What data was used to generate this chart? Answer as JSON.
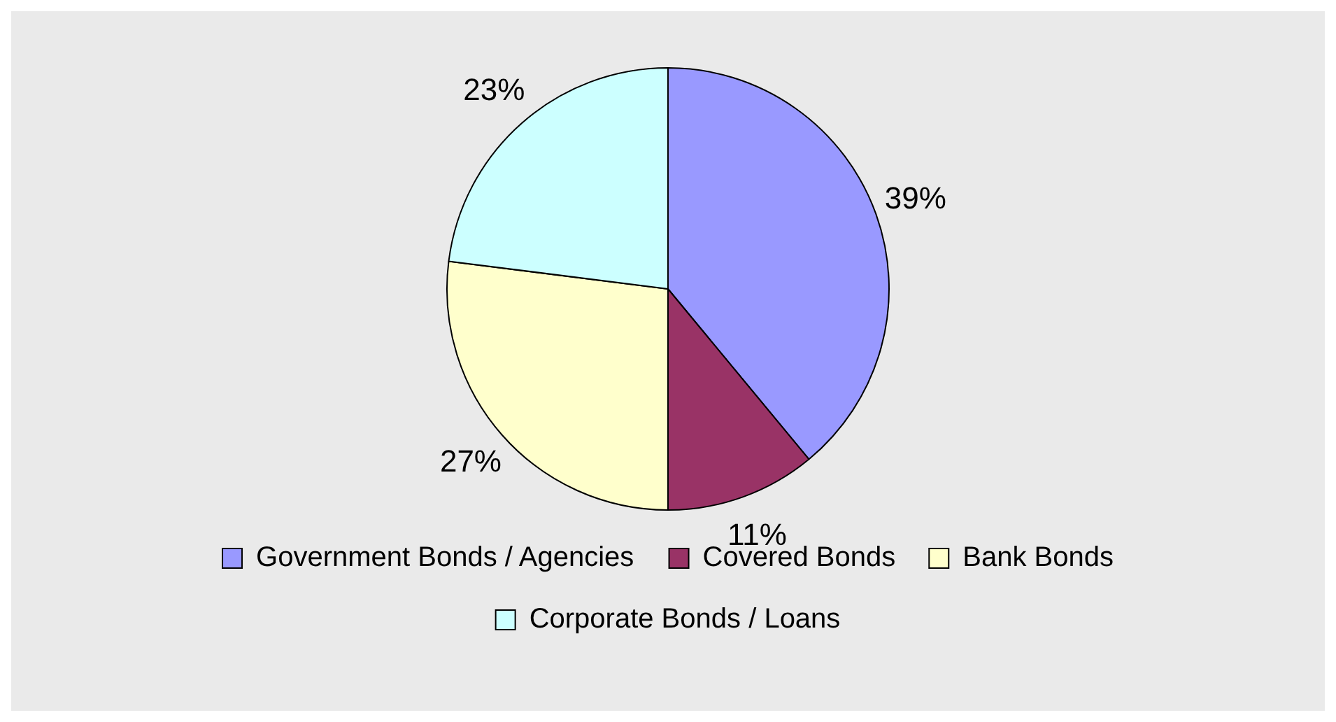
{
  "chart_data": {
    "type": "pie",
    "categories": [
      "Government Bonds / Agencies",
      "Covered Bonds",
      "Bank Bonds",
      "Corporate Bonds / Loans"
    ],
    "values": [
      39,
      11,
      27,
      23
    ],
    "value_labels": [
      "39%",
      "11%",
      "27%",
      "23%"
    ],
    "colors": [
      "#9999ff",
      "#993366",
      "#ffffcc",
      "#ccffff"
    ],
    "legend": "bottom"
  }
}
